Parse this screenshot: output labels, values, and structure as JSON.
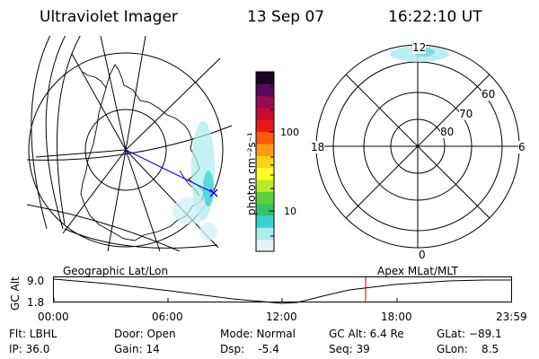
{
  "header": {
    "title": "Ultraviolet Imager",
    "date": "13 Sep 07",
    "time": "16:22:10 UT"
  },
  "colorbar": {
    "unit": "photon cm⁻²s⁻¹",
    "ticks": [
      "100",
      "10"
    ],
    "scale": "log",
    "colors": [
      "#e6f2f4",
      "#a8ecec",
      "#38d2d6",
      "#34c46a",
      "#58d23a",
      "#b8ea2c",
      "#ffff26",
      "#ffd21a",
      "#ff9a10",
      "#ff5a0c",
      "#e81818",
      "#c80c30",
      "#9a0a52",
      "#5a0a5a",
      "#1a0620"
    ]
  },
  "polar_plot": {
    "mlt_labels": {
      "top": "12",
      "left": "18",
      "right": "6",
      "bottom": "0"
    },
    "lat_labels": [
      "60",
      "70",
      "80"
    ]
  },
  "timeline": {
    "left_label": "Geographic Lat/Lon",
    "right_label": "Apex MLat/MLT",
    "y_axis_label": "GC Alt",
    "y_ticks": [
      "9.0",
      "1.8"
    ],
    "x_ticks": [
      "00:00",
      "06:00",
      "12:00",
      "18:00",
      "23:59"
    ],
    "current_time_marker": "16:22",
    "line_color": "#000000",
    "marker_color": "#cc0000"
  },
  "info": {
    "filter": "Flt: LBHL",
    "ip": "IP: 36.0",
    "door": "Door: Open",
    "gain": "Gain: 14",
    "mode": "Mode: Normal",
    "dsp": "Dsp:    -5.4",
    "gc_alt": "GC Alt: 6.4 Re",
    "seq": "Seq: 39",
    "glat": "GLat: −89.1",
    "glon": "GLon:    8.5"
  }
}
